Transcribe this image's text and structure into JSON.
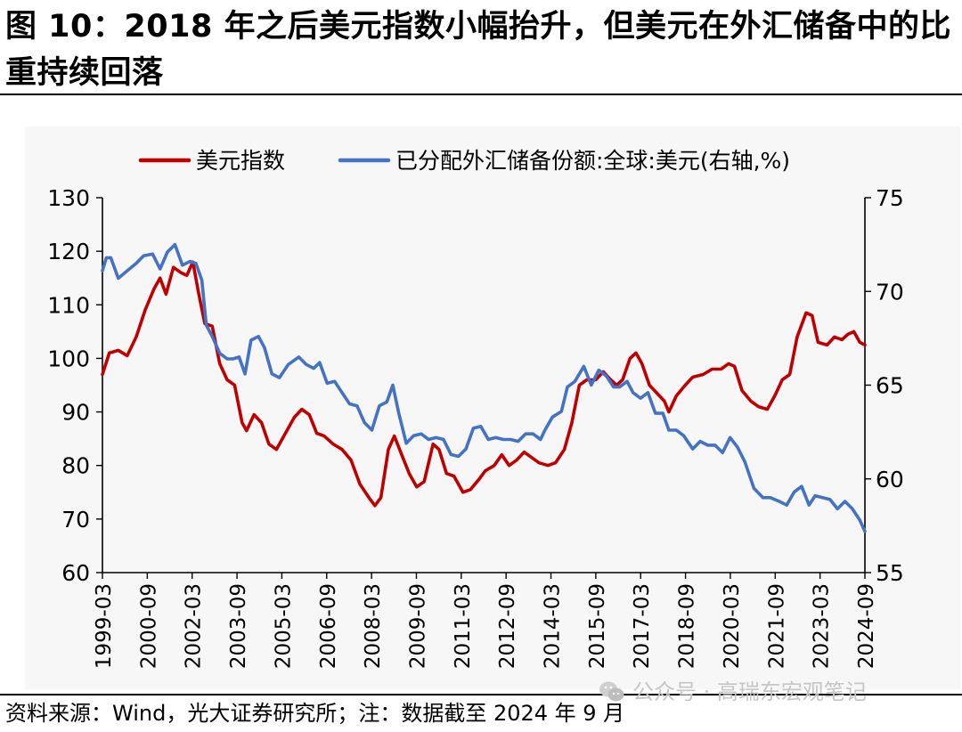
{
  "figure": {
    "title": "图 10：2018 年之后美元指数小幅抬升，但美元在外汇储备中的比重持续回落",
    "source": "资料来源：Wind，光大证券研究所；注：数据截至 2024 年 9 月",
    "watermark": "公众号 · 高瑞东宏观笔记"
  },
  "colors": {
    "usd_index": "#c00000",
    "reserve_share": "#4472c4"
  },
  "chart_data": {
    "type": "line",
    "title": "图 10：2018 年之后美元指数小幅抬升，但美元在外汇储备中的比重持续回落",
    "legend": [
      "美元指数",
      "已分配外汇储备份额:全球:美元(右轴,%)"
    ],
    "legend_position": "top",
    "x_ticks": [
      "1999-03",
      "2000-09",
      "2002-03",
      "2003-09",
      "2005-03",
      "2006-09",
      "2008-03",
      "2009-09",
      "2011-03",
      "2012-09",
      "2014-03",
      "2015-09",
      "2017-03",
      "2018-09",
      "2020-03",
      "2021-09",
      "2023-03",
      "2024-09"
    ],
    "y_left": {
      "label": "",
      "range": [
        60,
        130
      ],
      "ticks": [
        60,
        70,
        80,
        90,
        100,
        110,
        120,
        130
      ]
    },
    "y_right": {
      "label": "%",
      "range": [
        55,
        75
      ],
      "ticks": [
        55,
        60,
        65,
        70,
        75
      ]
    },
    "series": [
      {
        "name": "美元指数",
        "axis": "left",
        "color": "#c00000",
        "points": [
          [
            1999.17,
            97
          ],
          [
            1999.4,
            101
          ],
          [
            1999.7,
            101.5
          ],
          [
            2000.0,
            100.5
          ],
          [
            2000.3,
            104
          ],
          [
            2000.6,
            109
          ],
          [
            2000.9,
            113
          ],
          [
            2001.1,
            115
          ],
          [
            2001.3,
            112
          ],
          [
            2001.55,
            117
          ],
          [
            2001.8,
            116
          ],
          [
            2002.0,
            115.5
          ],
          [
            2002.2,
            118
          ],
          [
            2002.4,
            112
          ],
          [
            2002.6,
            106.5
          ],
          [
            2002.85,
            106
          ],
          [
            2003.1,
            99
          ],
          [
            2003.35,
            96
          ],
          [
            2003.6,
            95
          ],
          [
            2003.85,
            88
          ],
          [
            2004.0,
            86.5
          ],
          [
            2004.25,
            89.5
          ],
          [
            2004.5,
            88
          ],
          [
            2004.75,
            84
          ],
          [
            2005.0,
            83
          ],
          [
            2005.3,
            86
          ],
          [
            2005.6,
            89
          ],
          [
            2005.85,
            90.5
          ],
          [
            2006.1,
            89.5
          ],
          [
            2006.35,
            86
          ],
          [
            2006.6,
            85.5
          ],
          [
            2006.9,
            84
          ],
          [
            2007.2,
            83
          ],
          [
            2007.5,
            81
          ],
          [
            2007.8,
            76.5
          ],
          [
            2008.1,
            74
          ],
          [
            2008.3,
            72.5
          ],
          [
            2008.5,
            74
          ],
          [
            2008.75,
            83
          ],
          [
            2008.95,
            85.5
          ],
          [
            2009.2,
            82
          ],
          [
            2009.45,
            78.5
          ],
          [
            2009.7,
            76
          ],
          [
            2009.95,
            77
          ],
          [
            2010.25,
            84
          ],
          [
            2010.45,
            83
          ],
          [
            2010.7,
            78.5
          ],
          [
            2010.95,
            78
          ],
          [
            2011.25,
            75
          ],
          [
            2011.5,
            75.5
          ],
          [
            2011.8,
            77.5
          ],
          [
            2012.0,
            79
          ],
          [
            2012.3,
            80
          ],
          [
            2012.55,
            82
          ],
          [
            2012.8,
            80
          ],
          [
            2013.05,
            81
          ],
          [
            2013.3,
            82.5
          ],
          [
            2013.55,
            81.5
          ],
          [
            2013.8,
            80.5
          ],
          [
            2014.1,
            80
          ],
          [
            2014.35,
            80.5
          ],
          [
            2014.65,
            83
          ],
          [
            2014.9,
            88
          ],
          [
            2015.15,
            95
          ],
          [
            2015.4,
            96
          ],
          [
            2015.7,
            96
          ],
          [
            2015.95,
            97.5
          ],
          [
            2016.2,
            96
          ],
          [
            2016.4,
            95
          ],
          [
            2016.6,
            96
          ],
          [
            2016.85,
            100
          ],
          [
            2017.05,
            101
          ],
          [
            2017.25,
            99
          ],
          [
            2017.5,
            95
          ],
          [
            2017.75,
            93.5
          ],
          [
            2018.0,
            92
          ],
          [
            2018.15,
            90
          ],
          [
            2018.4,
            93
          ],
          [
            2018.7,
            95
          ],
          [
            2018.95,
            96.5
          ],
          [
            2019.3,
            97
          ],
          [
            2019.6,
            98
          ],
          [
            2019.9,
            98
          ],
          [
            2020.15,
            99
          ],
          [
            2020.35,
            98.5
          ],
          [
            2020.6,
            94
          ],
          [
            2020.9,
            92
          ],
          [
            2021.15,
            91
          ],
          [
            2021.45,
            90.5
          ],
          [
            2021.7,
            93
          ],
          [
            2021.95,
            96
          ],
          [
            2022.2,
            97
          ],
          [
            2022.45,
            104
          ],
          [
            2022.75,
            108.5
          ],
          [
            2022.95,
            108
          ],
          [
            2023.15,
            103
          ],
          [
            2023.45,
            102.5
          ],
          [
            2023.7,
            104
          ],
          [
            2023.95,
            103.5
          ],
          [
            2024.15,
            104.5
          ],
          [
            2024.35,
            105
          ],
          [
            2024.55,
            103
          ],
          [
            2024.72,
            102.5
          ]
        ]
      },
      {
        "name": "已分配外汇储备份额:全球:美元(右轴,%)",
        "axis": "right",
        "color": "#4472c4",
        "points": [
          [
            1999.17,
            71.1
          ],
          [
            1999.3,
            71.8
          ],
          [
            1999.45,
            71.8
          ],
          [
            1999.7,
            70.7
          ],
          [
            2000.0,
            71.1
          ],
          [
            2000.3,
            71.5
          ],
          [
            2000.55,
            71.9
          ],
          [
            2000.85,
            72
          ],
          [
            2001.1,
            71.2
          ],
          [
            2001.35,
            72.1
          ],
          [
            2001.6,
            72.5
          ],
          [
            2001.85,
            71.4
          ],
          [
            2002.1,
            71.6
          ],
          [
            2002.3,
            71.5
          ],
          [
            2002.5,
            70.6
          ],
          [
            2002.65,
            68.2
          ],
          [
            2002.85,
            67.6
          ],
          [
            2003.1,
            66.7
          ],
          [
            2003.35,
            66.4
          ],
          [
            2003.55,
            66.4
          ],
          [
            2003.75,
            66.5
          ],
          [
            2003.95,
            65.6
          ],
          [
            2004.15,
            67.4
          ],
          [
            2004.4,
            67.6
          ],
          [
            2004.6,
            67.0
          ],
          [
            2004.85,
            65.6
          ],
          [
            2005.1,
            65.4
          ],
          [
            2005.4,
            66.1
          ],
          [
            2005.75,
            66.5
          ],
          [
            2006.0,
            66.1
          ],
          [
            2006.25,
            65.9
          ],
          [
            2006.45,
            66.2
          ],
          [
            2006.7,
            65.1
          ],
          [
            2006.95,
            65.2
          ],
          [
            2007.2,
            64.6
          ],
          [
            2007.45,
            64.0
          ],
          [
            2007.7,
            63.9
          ],
          [
            2007.95,
            63.0
          ],
          [
            2008.2,
            62.6
          ],
          [
            2008.45,
            63.9
          ],
          [
            2008.7,
            64.1
          ],
          [
            2008.9,
            65.0
          ],
          [
            2009.1,
            63.5
          ],
          [
            2009.35,
            61.9
          ],
          [
            2009.6,
            62.3
          ],
          [
            2009.85,
            62.4
          ],
          [
            2010.1,
            62.1
          ],
          [
            2010.35,
            62.2
          ],
          [
            2010.6,
            62.1
          ],
          [
            2010.85,
            61.3
          ],
          [
            2011.1,
            61.2
          ],
          [
            2011.35,
            61.6
          ],
          [
            2011.6,
            62.7
          ],
          [
            2011.85,
            62.8
          ],
          [
            2012.1,
            62.1
          ],
          [
            2012.35,
            62.2
          ],
          [
            2012.6,
            62.1
          ],
          [
            2012.85,
            62.1
          ],
          [
            2013.1,
            62.0
          ],
          [
            2013.35,
            62.4
          ],
          [
            2013.6,
            62.4
          ],
          [
            2013.85,
            62.1
          ],
          [
            2014.0,
            62.6
          ],
          [
            2014.25,
            63.3
          ],
          [
            2014.55,
            63.6
          ],
          [
            2014.75,
            64.9
          ],
          [
            2015.0,
            65.2
          ],
          [
            2015.3,
            66.0
          ],
          [
            2015.55,
            65.0
          ],
          [
            2015.8,
            65.8
          ],
          [
            2016.05,
            65.5
          ],
          [
            2016.3,
            64.9
          ],
          [
            2016.5,
            64.9
          ],
          [
            2016.75,
            65.2
          ],
          [
            2016.95,
            64.6
          ],
          [
            2017.2,
            64.3
          ],
          [
            2017.45,
            64.6
          ],
          [
            2017.7,
            63.5
          ],
          [
            2017.95,
            63.5
          ],
          [
            2018.15,
            62.6
          ],
          [
            2018.4,
            62.6
          ],
          [
            2018.65,
            62.3
          ],
          [
            2018.95,
            61.6
          ],
          [
            2019.2,
            62.0
          ],
          [
            2019.45,
            61.8
          ],
          [
            2019.7,
            61.8
          ],
          [
            2019.95,
            61.4
          ],
          [
            2020.2,
            62.2
          ],
          [
            2020.45,
            61.7
          ],
          [
            2020.7,
            60.9
          ],
          [
            2021.0,
            59.5
          ],
          [
            2021.3,
            59.0
          ],
          [
            2021.55,
            59.0
          ],
          [
            2021.85,
            58.8
          ],
          [
            2022.1,
            58.6
          ],
          [
            2022.35,
            59.3
          ],
          [
            2022.6,
            59.6
          ],
          [
            2022.85,
            58.6
          ],
          [
            2023.05,
            59.1
          ],
          [
            2023.3,
            59.0
          ],
          [
            2023.55,
            58.9
          ],
          [
            2023.8,
            58.4
          ],
          [
            2024.05,
            58.8
          ],
          [
            2024.3,
            58.4
          ],
          [
            2024.55,
            57.8
          ],
          [
            2024.72,
            57.2
          ]
        ]
      }
    ]
  }
}
